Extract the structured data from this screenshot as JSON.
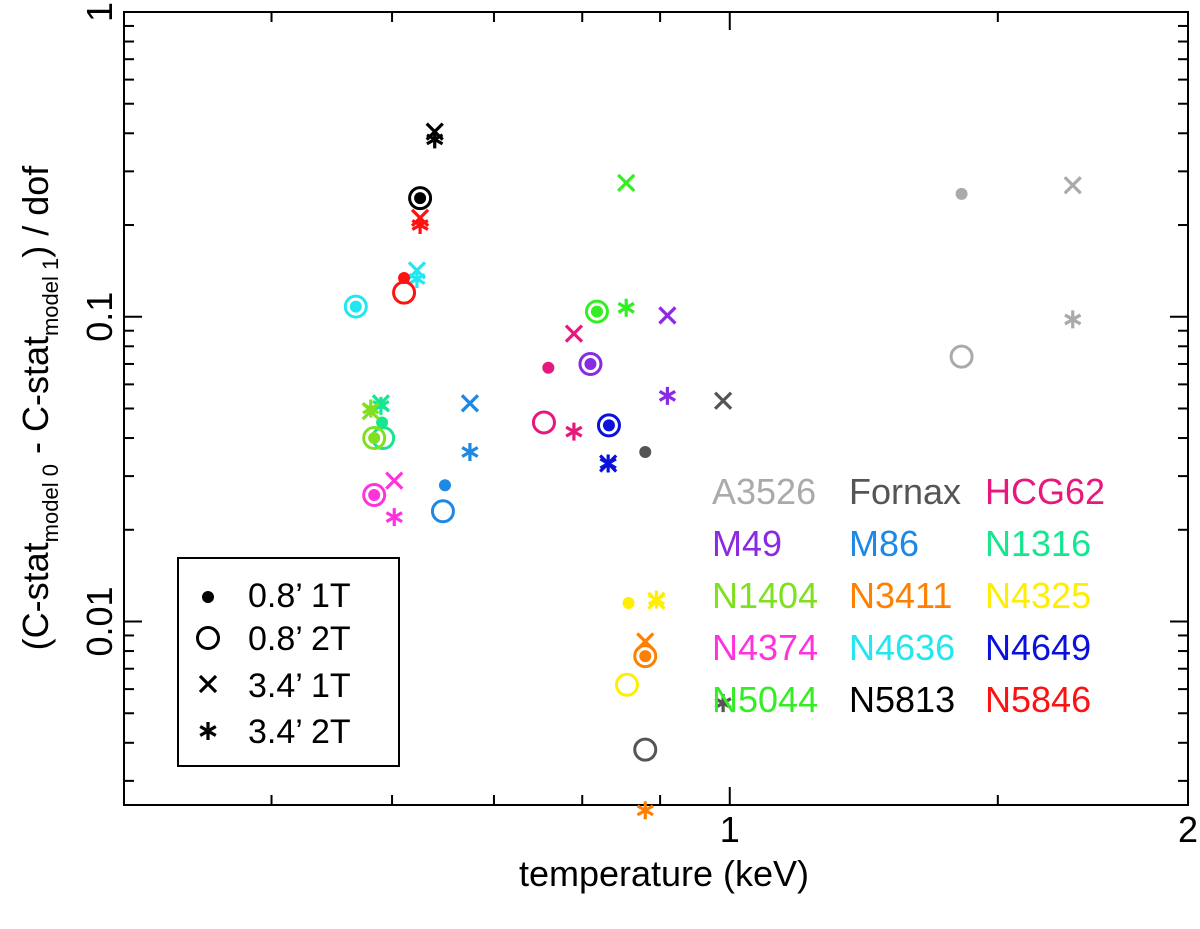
{
  "chart_data": {
    "type": "scatter",
    "xlabel": "temperature (keV)",
    "ylabel": {
      "prefix": "(C-stat",
      "sub0": "model 0",
      "mid": " - C-stat",
      "sub1": "model 1",
      "suffix": ") / dof"
    },
    "x_scale": "log",
    "y_scale": "log",
    "xlim": [
      0.4,
      2.0
    ],
    "ylim": [
      0.0025,
      1.0
    ],
    "x_ticks": [
      {
        "value": 1,
        "label": "1"
      },
      {
        "value": 2,
        "label": "2"
      }
    ],
    "x_minor_ticks": [
      0.5,
      0.6,
      0.7,
      0.8,
      0.9,
      1.5
    ],
    "y_ticks": [
      {
        "value": 0.01,
        "label": "0.01"
      },
      {
        "value": 0.1,
        "label": "0.1"
      },
      {
        "value": 1,
        "label": "1"
      }
    ],
    "y_minor_ticks": [
      0.003,
      0.004,
      0.005,
      0.006,
      0.007,
      0.008,
      0.009,
      0.02,
      0.03,
      0.04,
      0.05,
      0.06,
      0.07,
      0.08,
      0.09,
      0.2,
      0.3,
      0.4,
      0.5,
      0.6,
      0.7,
      0.8,
      0.9
    ],
    "legend_markers": [
      {
        "marker": "dot",
        "label": "0.8’  1T"
      },
      {
        "marker": "circle",
        "label": "0.8’  2T"
      },
      {
        "marker": "x",
        "label": "3.4’  1T"
      },
      {
        "marker": "star",
        "label": "3.4’  2T"
      }
    ],
    "groups": [
      {
        "name": "A3526",
        "color": "#aaaaaa",
        "points": [
          {
            "m": "dot",
            "x": 1.42,
            "y": 0.253
          },
          {
            "m": "circle",
            "x": 1.42,
            "y": 0.074
          },
          {
            "m": "x",
            "x": 1.68,
            "y": 0.27
          },
          {
            "m": "star",
            "x": 1.68,
            "y": 0.098
          }
        ]
      },
      {
        "name": "Fornax",
        "color": "#555555",
        "points": [
          {
            "m": "dot",
            "x": 0.88,
            "y": 0.036
          },
          {
            "m": "circle",
            "x": 0.88,
            "y": 0.0038
          },
          {
            "m": "x",
            "x": 0.99,
            "y": 0.053
          },
          {
            "m": "star",
            "x": 0.99,
            "y": 0.0054
          }
        ]
      },
      {
        "name": "HCG62",
        "color": "#e8177c",
        "points": [
          {
            "m": "dot",
            "x": 0.76,
            "y": 0.068
          },
          {
            "m": "circle",
            "x": 0.755,
            "y": 0.045
          },
          {
            "m": "x",
            "x": 0.79,
            "y": 0.088
          },
          {
            "m": "star",
            "x": 0.79,
            "y": 0.042
          }
        ]
      },
      {
        "name": "M49",
        "color": "#8a2be2",
        "points": [
          {
            "m": "dot",
            "x": 0.81,
            "y": 0.07
          },
          {
            "m": "circle",
            "x": 0.81,
            "y": 0.07
          },
          {
            "m": "x",
            "x": 0.91,
            "y": 0.101
          },
          {
            "m": "star",
            "x": 0.91,
            "y": 0.055
          }
        ]
      },
      {
        "name": "M86",
        "color": "#1e88e5",
        "points": [
          {
            "m": "dot",
            "x": 0.65,
            "y": 0.028
          },
          {
            "m": "circle",
            "x": 0.648,
            "y": 0.023
          },
          {
            "m": "x",
            "x": 0.675,
            "y": 0.052
          },
          {
            "m": "star",
            "x": 0.675,
            "y": 0.036
          }
        ]
      },
      {
        "name": "N1316",
        "color": "#17e690",
        "points": [
          {
            "m": "dot",
            "x": 0.591,
            "y": 0.045
          },
          {
            "m": "circle",
            "x": 0.592,
            "y": 0.04
          },
          {
            "m": "x",
            "x": 0.59,
            "y": 0.052
          },
          {
            "m": "star",
            "x": 0.59,
            "y": 0.051
          }
        ]
      },
      {
        "name": "N1404",
        "color": "#80e020",
        "points": [
          {
            "m": "dot",
            "x": 0.584,
            "y": 0.04
          },
          {
            "m": "circle",
            "x": 0.584,
            "y": 0.04
          },
          {
            "m": "x",
            "x": 0.581,
            "y": 0.049
          },
          {
            "m": "star",
            "x": 0.581,
            "y": 0.05
          }
        ]
      },
      {
        "name": "N3411",
        "color": "#ff8000",
        "points": [
          {
            "m": "dot",
            "x": 0.88,
            "y": 0.0077
          },
          {
            "m": "circle",
            "x": 0.88,
            "y": 0.0077
          },
          {
            "m": "x",
            "x": 0.88,
            "y": 0.0086
          },
          {
            "m": "star",
            "x": 0.88,
            "y": 0.0024
          }
        ]
      },
      {
        "name": "N4325",
        "color": "#ffee00",
        "points": [
          {
            "m": "dot",
            "x": 0.858,
            "y": 0.0115
          },
          {
            "m": "circle",
            "x": 0.856,
            "y": 0.0062
          },
          {
            "m": "x",
            "x": 0.895,
            "y": 0.0117
          },
          {
            "m": "star",
            "x": 0.895,
            "y": 0.0118
          }
        ]
      },
      {
        "name": "N4374",
        "color": "#ff33dd",
        "points": [
          {
            "m": "dot",
            "x": 0.584,
            "y": 0.026
          },
          {
            "m": "circle",
            "x": 0.584,
            "y": 0.026
          },
          {
            "m": "x",
            "x": 0.602,
            "y": 0.029
          },
          {
            "m": "star",
            "x": 0.602,
            "y": 0.022
          }
        ]
      },
      {
        "name": "N4636",
        "color": "#22e6f0",
        "points": [
          {
            "m": "dot",
            "x": 0.568,
            "y": 0.108
          },
          {
            "m": "circle",
            "x": 0.568,
            "y": 0.108
          },
          {
            "m": "x",
            "x": 0.623,
            "y": 0.142
          },
          {
            "m": "star",
            "x": 0.623,
            "y": 0.133
          }
        ]
      },
      {
        "name": "N4649",
        "color": "#0a10dd",
        "points": [
          {
            "m": "dot",
            "x": 0.833,
            "y": 0.044
          },
          {
            "m": "circle",
            "x": 0.833,
            "y": 0.044
          },
          {
            "m": "x",
            "x": 0.832,
            "y": 0.033
          },
          {
            "m": "star",
            "x": 0.832,
            "y": 0.033
          }
        ]
      },
      {
        "name": "N5044",
        "color": "#33ee22",
        "points": [
          {
            "m": "dot",
            "x": 0.818,
            "y": 0.104
          },
          {
            "m": "circle",
            "x": 0.818,
            "y": 0.104
          },
          {
            "m": "x",
            "x": 0.855,
            "y": 0.275
          },
          {
            "m": "star",
            "x": 0.855,
            "y": 0.107
          }
        ]
      },
      {
        "name": "N5813",
        "color": "#000000",
        "points": [
          {
            "m": "dot",
            "x": 0.626,
            "y": 0.245
          },
          {
            "m": "circle",
            "x": 0.626,
            "y": 0.245
          },
          {
            "m": "x",
            "x": 0.64,
            "y": 0.405
          },
          {
            "m": "star",
            "x": 0.64,
            "y": 0.382
          }
        ]
      },
      {
        "name": "N5846",
        "color": "#ff1111",
        "points": [
          {
            "m": "dot",
            "x": 0.611,
            "y": 0.134
          },
          {
            "m": "circle",
            "x": 0.611,
            "y": 0.12
          },
          {
            "m": "x",
            "x": 0.626,
            "y": 0.211
          },
          {
            "m": "star",
            "x": 0.626,
            "y": 0.2
          }
        ]
      }
    ]
  }
}
